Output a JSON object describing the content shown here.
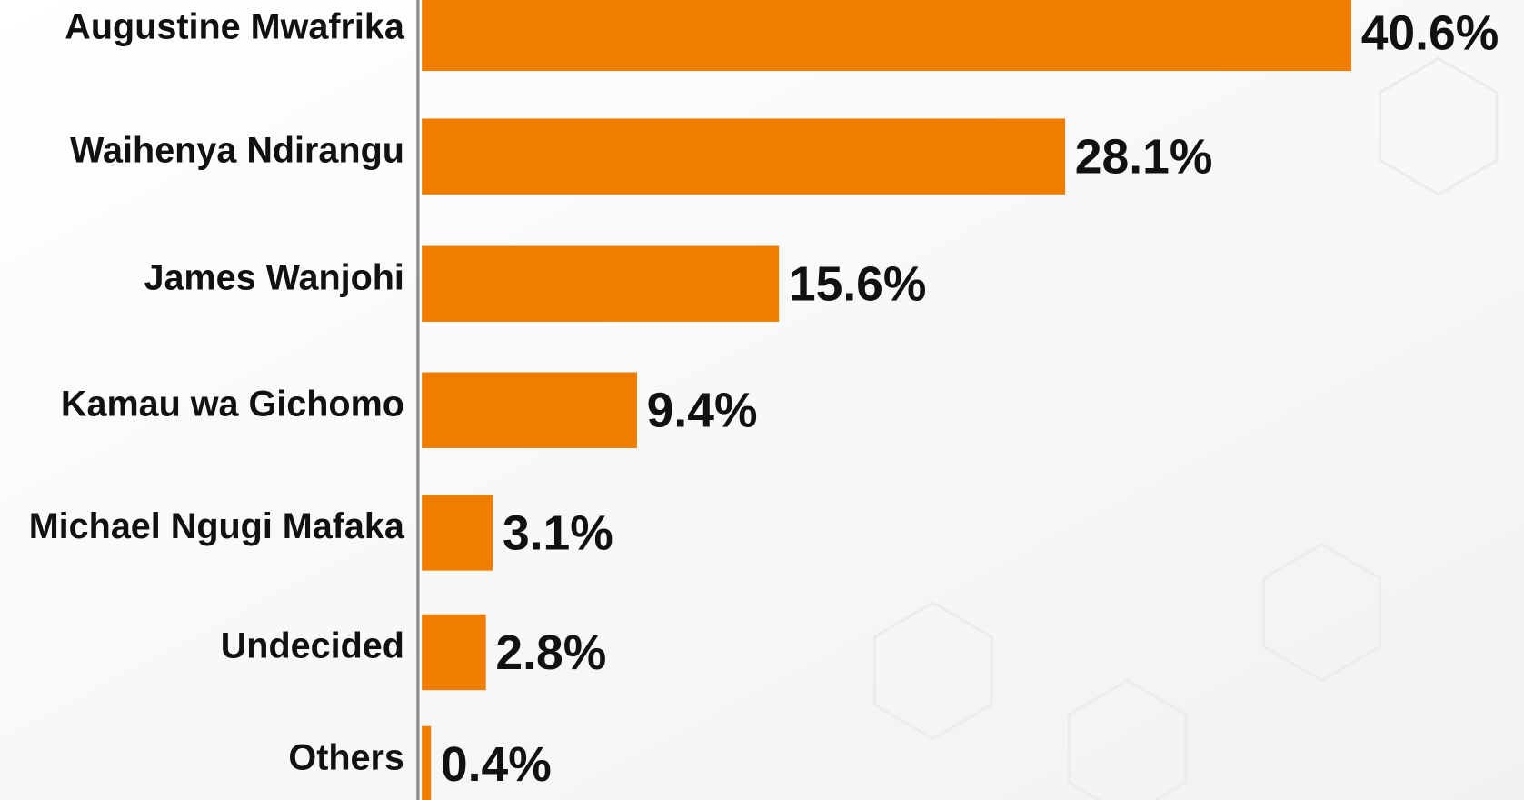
{
  "chart_data": {
    "type": "barh",
    "categories": [
      "Augustine Mwafrika",
      "Waihenya Ndirangu",
      "James Wanjohi",
      "Kamau wa Gichomo",
      "Michael Ngugi Mafaka",
      "Undecided",
      "Others"
    ],
    "values": [
      40.6,
      28.1,
      15.6,
      9.4,
      3.1,
      2.8,
      0.4
    ],
    "value_labels": [
      "40.6%",
      "28.1%",
      "15.6%",
      "9.4%",
      "3.1%",
      "2.8%",
      "0.4%"
    ],
    "color": "#ef7d00",
    "xlim": [
      0,
      45
    ]
  }
}
